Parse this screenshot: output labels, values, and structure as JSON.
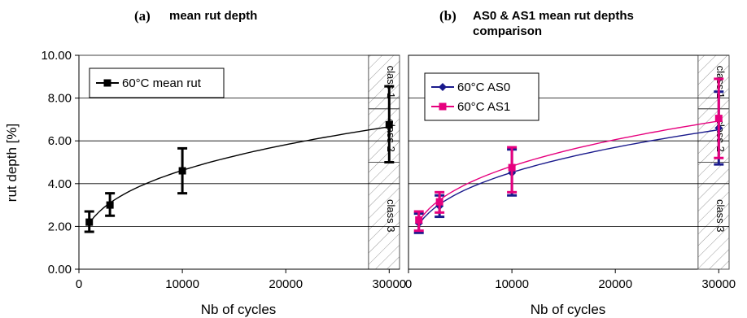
{
  "chart_data": [
    {
      "type": "line",
      "panel_letter": "(a)",
      "title": "mean rut depth",
      "xlabel": "Nb of cycles",
      "ylabel": "rut depth [%]",
      "xlim": [
        0,
        31000
      ],
      "ylim": [
        0,
        10
      ],
      "x_ticks": [
        "0",
        "10000",
        "20000",
        "30000"
      ],
      "y_ticks": [
        "0.00",
        "2.00",
        "4.00",
        "6.00",
        "8.00",
        "10.00"
      ],
      "legend_position": "top-left",
      "series": [
        {
          "name": "60°C mean rut",
          "color": "#000000",
          "marker": "square",
          "x": [
            1000,
            3000,
            10000,
            30000
          ],
          "y": [
            2.2,
            3.0,
            4.6,
            6.75
          ],
          "err_low": [
            1.75,
            2.5,
            3.55,
            5.0
          ],
          "err_high": [
            2.7,
            3.55,
            5.65,
            8.55
          ]
        }
      ],
      "class_bands": [
        {
          "label": "class 1",
          "y_range": [
            7.5,
            10
          ]
        },
        {
          "label": "class 2",
          "y_range": [
            5,
            7.5
          ]
        },
        {
          "label": "class 3",
          "y_range": [
            0,
            5
          ]
        }
      ],
      "class_band_x_range": [
        28000,
        31000
      ]
    },
    {
      "type": "line",
      "panel_letter": "(b)",
      "title": "AS0 & AS1 mean rut depths",
      "title_line2": "comparison",
      "xlabel": "Nb of cycles",
      "ylabel": "",
      "xlim": [
        0,
        31000
      ],
      "ylim": [
        0,
        10
      ],
      "x_ticks": [
        "0",
        "10000",
        "20000",
        "30000"
      ],
      "legend_position": "top-left",
      "series": [
        {
          "name": "60°C AS0",
          "color": "#1a1a8c",
          "marker": "diamond",
          "x": [
            1000,
            3000,
            10000,
            30000
          ],
          "y": [
            2.15,
            2.95,
            4.5,
            6.6
          ],
          "err_low": [
            1.7,
            2.45,
            3.45,
            4.9
          ],
          "err_high": [
            2.6,
            3.45,
            5.6,
            8.3
          ]
        },
        {
          "name": "60°C AS1",
          "color": "#e6007e",
          "marker": "square",
          "x": [
            1000,
            3000,
            10000,
            30000
          ],
          "y": [
            2.3,
            3.15,
            4.75,
            7.05
          ],
          "err_low": [
            1.8,
            2.65,
            3.6,
            5.2
          ],
          "err_high": [
            2.7,
            3.6,
            5.7,
            8.9
          ]
        }
      ],
      "class_bands": [
        {
          "label": "class 1",
          "y_range": [
            7.5,
            10
          ]
        },
        {
          "label": "class 2",
          "y_range": [
            5,
            7.5
          ]
        },
        {
          "label": "class 3",
          "y_range": [
            0,
            5
          ]
        }
      ],
      "class_band_x_range": [
        28000,
        31000
      ]
    }
  ]
}
